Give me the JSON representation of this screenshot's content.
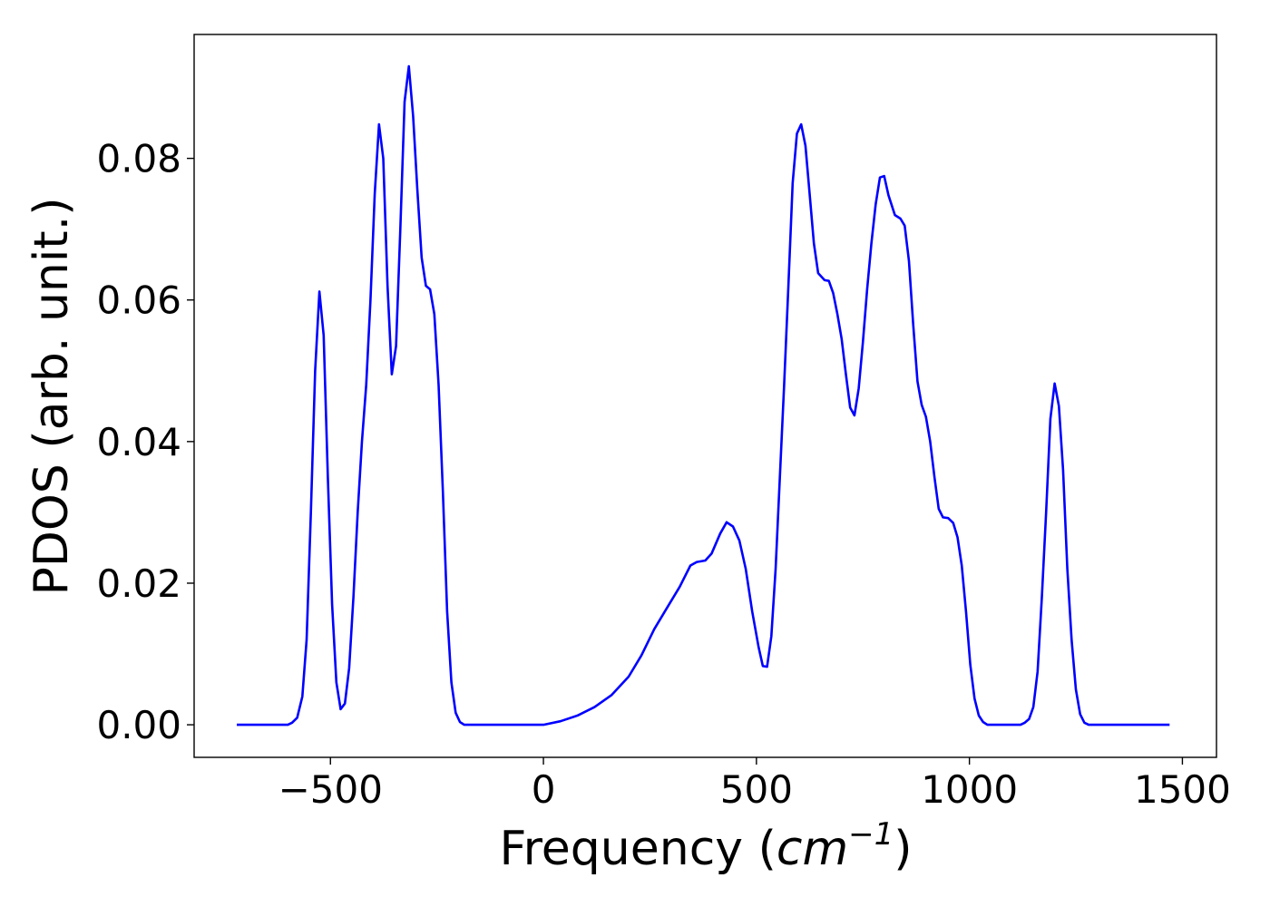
{
  "chart_data": {
    "type": "line",
    "title": "",
    "xlabel_main": "Frequency (",
    "xlabel_unit": "cm",
    "xlabel_exp": "−1",
    "xlabel_close": ")",
    "ylabel": "PDOS (arb. unit.)",
    "xlim": [
      -820,
      1580
    ],
    "ylim": [
      -0.0046,
      0.0975
    ],
    "xticks": [
      -500,
      0,
      500,
      1000,
      1500
    ],
    "xtick_labels": [
      "−500",
      "0",
      "500",
      "1000",
      "1500"
    ],
    "yticks": [
      0.0,
      0.02,
      0.04,
      0.06,
      0.08
    ],
    "ytick_labels": [
      "0.00",
      "0.02",
      "0.04",
      "0.06",
      "0.08"
    ],
    "grid": false,
    "series": [
      {
        "color": "#0000ff",
        "points": [
          [
            -720,
            0.0
          ],
          [
            -600,
            0.0
          ],
          [
            -590,
            0.0003
          ],
          [
            -578,
            0.001
          ],
          [
            -566,
            0.004
          ],
          [
            -556,
            0.012
          ],
          [
            -546,
            0.03
          ],
          [
            -536,
            0.05
          ],
          [
            -526,
            0.0612
          ],
          [
            -516,
            0.055
          ],
          [
            -506,
            0.035
          ],
          [
            -496,
            0.017
          ],
          [
            -486,
            0.006
          ],
          [
            -476,
            0.0022
          ],
          [
            -466,
            0.003
          ],
          [
            -456,
            0.008
          ],
          [
            -446,
            0.018
          ],
          [
            -436,
            0.03
          ],
          [
            -426,
            0.04
          ],
          [
            -416,
            0.048
          ],
          [
            -406,
            0.06
          ],
          [
            -396,
            0.075
          ],
          [
            -386,
            0.0848
          ],
          [
            -376,
            0.08
          ],
          [
            -366,
            0.062
          ],
          [
            -356,
            0.0495
          ],
          [
            -346,
            0.0535
          ],
          [
            -336,
            0.07
          ],
          [
            -326,
            0.088
          ],
          [
            -316,
            0.093
          ],
          [
            -306,
            0.086
          ],
          [
            -296,
            0.0755
          ],
          [
            -286,
            0.066
          ],
          [
            -276,
            0.062
          ],
          [
            -266,
            0.0615
          ],
          [
            -256,
            0.058
          ],
          [
            -246,
            0.048
          ],
          [
            -236,
            0.033
          ],
          [
            -226,
            0.016
          ],
          [
            -216,
            0.006
          ],
          [
            -206,
            0.0017
          ],
          [
            -196,
            0.0004
          ],
          [
            -186,
            0.0
          ],
          [
            -100,
            0.0
          ],
          [
            0,
            0.0
          ],
          [
            40,
            0.0005
          ],
          [
            80,
            0.0013
          ],
          [
            120,
            0.0025
          ],
          [
            160,
            0.0042
          ],
          [
            200,
            0.0068
          ],
          [
            230,
            0.0098
          ],
          [
            260,
            0.0135
          ],
          [
            290,
            0.0165
          ],
          [
            320,
            0.0195
          ],
          [
            345,
            0.0225
          ],
          [
            360,
            0.023
          ],
          [
            380,
            0.0232
          ],
          [
            395,
            0.0242
          ],
          [
            415,
            0.027
          ],
          [
            430,
            0.0286
          ],
          [
            445,
            0.028
          ],
          [
            460,
            0.026
          ],
          [
            475,
            0.022
          ],
          [
            490,
            0.016
          ],
          [
            505,
            0.011
          ],
          [
            515,
            0.0083
          ],
          [
            525,
            0.0082
          ],
          [
            535,
            0.0125
          ],
          [
            545,
            0.022
          ],
          [
            555,
            0.035
          ],
          [
            565,
            0.048
          ],
          [
            575,
            0.062
          ],
          [
            585,
            0.0765
          ],
          [
            595,
            0.0835
          ],
          [
            605,
            0.0848
          ],
          [
            615,
            0.0818
          ],
          [
            625,
            0.075
          ],
          [
            635,
            0.068
          ],
          [
            645,
            0.0638
          ],
          [
            660,
            0.0628
          ],
          [
            670,
            0.0627
          ],
          [
            680,
            0.061
          ],
          [
            690,
            0.058
          ],
          [
            700,
            0.0545
          ],
          [
            710,
            0.0495
          ],
          [
            720,
            0.0448
          ],
          [
            730,
            0.0437
          ],
          [
            740,
            0.0475
          ],
          [
            750,
            0.054
          ],
          [
            760,
            0.0615
          ],
          [
            770,
            0.068
          ],
          [
            780,
            0.0735
          ],
          [
            790,
            0.0773
          ],
          [
            800,
            0.0775
          ],
          [
            810,
            0.0748
          ],
          [
            825,
            0.072
          ],
          [
            838,
            0.0715
          ],
          [
            848,
            0.0705
          ],
          [
            858,
            0.0655
          ],
          [
            868,
            0.0565
          ],
          [
            878,
            0.0485
          ],
          [
            888,
            0.0452
          ],
          [
            898,
            0.0435
          ],
          [
            908,
            0.04
          ],
          [
            918,
            0.035
          ],
          [
            928,
            0.0305
          ],
          [
            938,
            0.0293
          ],
          [
            950,
            0.0292
          ],
          [
            962,
            0.0285
          ],
          [
            972,
            0.0265
          ],
          [
            982,
            0.0225
          ],
          [
            992,
            0.016
          ],
          [
            1002,
            0.0085
          ],
          [
            1012,
            0.0037
          ],
          [
            1022,
            0.0013
          ],
          [
            1032,
            0.0004
          ],
          [
            1042,
            0.0
          ],
          [
            1100,
            0.0
          ],
          [
            1120,
            0.0
          ],
          [
            1130,
            0.0003
          ],
          [
            1140,
            0.0008
          ],
          [
            1150,
            0.0025
          ],
          [
            1160,
            0.0075
          ],
          [
            1170,
            0.018
          ],
          [
            1180,
            0.03
          ],
          [
            1190,
            0.0432
          ],
          [
            1200,
            0.0482
          ],
          [
            1210,
            0.045
          ],
          [
            1220,
            0.036
          ],
          [
            1230,
            0.022
          ],
          [
            1240,
            0.012
          ],
          [
            1250,
            0.005
          ],
          [
            1260,
            0.0015
          ],
          [
            1270,
            0.0003
          ],
          [
            1280,
            0.0
          ],
          [
            1470,
            0.0
          ]
        ]
      }
    ]
  }
}
